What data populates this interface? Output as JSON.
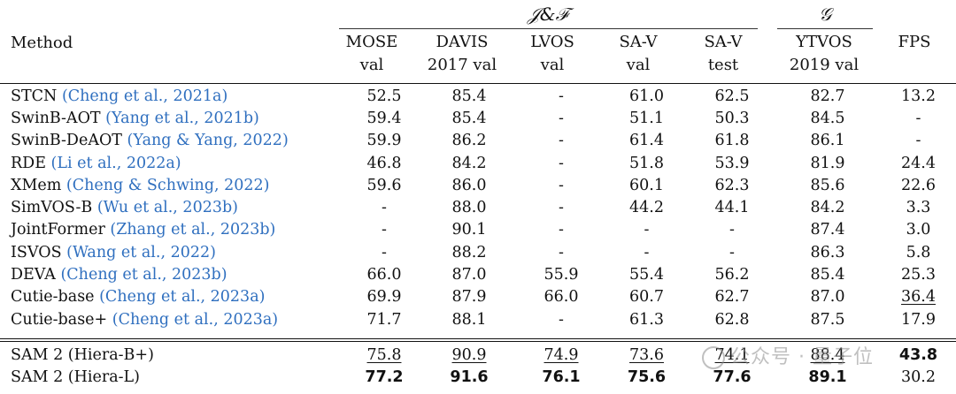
{
  "group_headers": {
    "jf": "𝒥&ℱ",
    "g": "𝒢"
  },
  "columns": {
    "method": "Method",
    "c1": [
      "MOSE",
      "val"
    ],
    "c2": [
      "DAVIS",
      "2017 val"
    ],
    "c3": [
      "LVOS",
      "val"
    ],
    "c4": [
      "SA-V",
      "val"
    ],
    "c5": [
      "SA-V",
      "test"
    ],
    "c6": [
      "YTVOS",
      "2019 val"
    ],
    "c7": [
      "FPS",
      ""
    ]
  },
  "rows": [
    {
      "name": "STCN",
      "cite": "(Cheng et al., 2021a)",
      "v": [
        "52.5",
        "85.4",
        "-",
        "61.0",
        "62.5",
        "82.7",
        "13.2"
      ]
    },
    {
      "name": "SwinB-AOT",
      "cite": "(Yang et al., 2021b)",
      "v": [
        "59.4",
        "85.4",
        "-",
        "51.1",
        "50.3",
        "84.5",
        "-"
      ]
    },
    {
      "name": "SwinB-DeAOT",
      "cite": "(Yang & Yang, 2022)",
      "v": [
        "59.9",
        "86.2",
        "-",
        "61.4",
        "61.8",
        "86.1",
        "-"
      ]
    },
    {
      "name": "RDE",
      "cite": "(Li et al., 2022a)",
      "v": [
        "46.8",
        "84.2",
        "-",
        "51.8",
        "53.9",
        "81.9",
        "24.4"
      ]
    },
    {
      "name": "XMem",
      "cite": "(Cheng & Schwing, 2022)",
      "v": [
        "59.6",
        "86.0",
        "-",
        "60.1",
        "62.3",
        "85.6",
        "22.6"
      ]
    },
    {
      "name": "SimVOS-B",
      "cite": "(Wu et al., 2023b)",
      "v": [
        "-",
        "88.0",
        "-",
        "44.2",
        "44.1",
        "84.2",
        "3.3"
      ]
    },
    {
      "name": "JointFormer",
      "cite": "(Zhang et al., 2023b)",
      "v": [
        "-",
        "90.1",
        "-",
        "-",
        "-",
        "87.4",
        "3.0"
      ]
    },
    {
      "name": "ISVOS",
      "cite": "(Wang et al., 2022)",
      "v": [
        "-",
        "88.2",
        "-",
        "-",
        "-",
        "86.3",
        "5.8"
      ]
    },
    {
      "name": "DEVA",
      "cite": "(Cheng et al., 2023b)",
      "v": [
        "66.0",
        "87.0",
        "55.9",
        "55.4",
        "56.2",
        "85.4",
        "25.3"
      ]
    },
    {
      "name": "Cutie-base",
      "cite": "(Cheng et al., 2023a)",
      "v": [
        "69.9",
        "87.9",
        "66.0",
        "60.7",
        "62.7",
        "87.0",
        "36.4"
      ]
    },
    {
      "name": "Cutie-base+",
      "cite": "(Cheng et al., 2023a)",
      "v": [
        "71.7",
        "88.1",
        "-",
        "61.3",
        "62.8",
        "87.5",
        "17.9"
      ]
    }
  ],
  "sam_rows": [
    {
      "name": "SAM 2 (Hiera-B+)",
      "v": [
        "75.8",
        "90.9",
        "74.9",
        "73.6",
        "74.1",
        "88.4",
        "43.8"
      ]
    },
    {
      "name": "SAM 2 (Hiera-L)",
      "v": [
        "77.2",
        "91.6",
        "76.1",
        "75.6",
        "77.6",
        "89.1",
        "30.2"
      ]
    }
  ],
  "watermark": "公众号 · 量子位"
}
